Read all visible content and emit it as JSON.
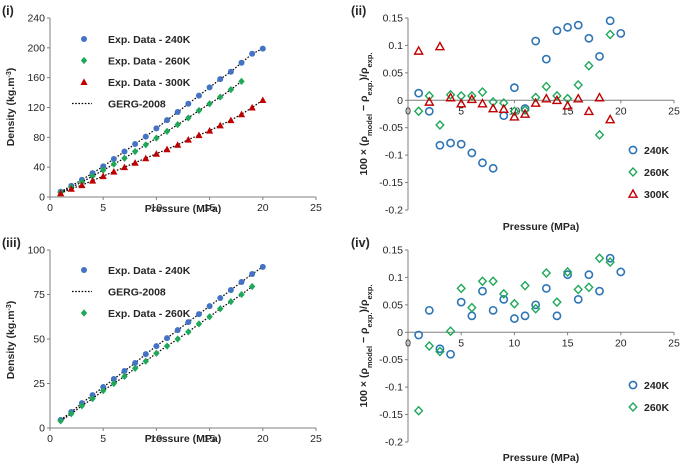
{
  "chart_data": [
    {
      "id": "i",
      "type": "scatter",
      "panel_label": "(i)",
      "xlabel": "Pressure (MPa)",
      "ylabel": "Density (kg.m⁻³)",
      "xlim": [
        0,
        25
      ],
      "ylim": [
        0,
        240
      ],
      "xticks": [
        0,
        5,
        10,
        15,
        20,
        25
      ],
      "yticks": [
        0,
        40,
        80,
        120,
        160,
        200,
        240
      ],
      "legend_position": "top-left",
      "series": [
        {
          "name": "Exp. Data - 240K",
          "marker": "circle",
          "color": "#4472c4",
          "x": [
            1,
            2,
            3,
            4,
            5,
            6,
            7,
            8,
            9,
            10,
            11,
            12,
            13,
            14,
            15,
            16,
            17,
            18,
            19,
            20
          ],
          "y": [
            7,
            15,
            23,
            32,
            41,
            51,
            61,
            71,
            81,
            92,
            103,
            114,
            125,
            136,
            147,
            158,
            168,
            180,
            192,
            199
          ]
        },
        {
          "name": "Exp. Data - 260K",
          "marker": "diamond",
          "color": "#1fa85a",
          "x": [
            1,
            2,
            3,
            4,
            5,
            6,
            7,
            8,
            9,
            10,
            11,
            12,
            13,
            14,
            15,
            16,
            17,
            18
          ],
          "y": [
            6,
            13,
            20,
            28,
            36,
            44,
            52,
            61,
            70,
            79,
            88,
            97,
            106,
            116,
            125,
            134,
            144,
            155
          ]
        },
        {
          "name": "Exp. Data - 300K",
          "marker": "triangle",
          "color": "#c00000",
          "x": [
            1,
            2,
            3,
            4,
            5,
            6,
            7,
            8,
            9,
            10,
            11,
            12,
            13,
            14,
            15,
            16,
            17,
            18,
            19,
            20
          ],
          "y": [
            5,
            11,
            16,
            22,
            28,
            34,
            40,
            46,
            52,
            58,
            64,
            70,
            77,
            83,
            89,
            96,
            103,
            111,
            120,
            130
          ]
        },
        {
          "name": "GERG-2008",
          "marker": "line",
          "color": "#000000"
        }
      ]
    },
    {
      "id": "ii",
      "type": "scatter",
      "panel_label": "(ii)",
      "xlabel": "Pressure (MPa)",
      "ylabel": "100 × (ρmodel − ρexp.)/ρexp.",
      "xlim": [
        0,
        25
      ],
      "ylim": [
        -0.2,
        0.15
      ],
      "xticks": [
        0,
        5,
        10,
        15,
        20,
        25
      ],
      "yticks": [
        -0.2,
        -0.15,
        -0.1,
        -0.05,
        0,
        0.05,
        0.1,
        0.15
      ],
      "ytick_labels": [
        "-0.2",
        "-0.15",
        "-0.1",
        "-0.05",
        "0",
        "0.05",
        "0.1",
        "0.15"
      ],
      "legend_position": "bottom-right",
      "series": [
        {
          "name": "240K",
          "marker": "circle-open",
          "color": "#2e75b6",
          "x": [
            1,
            2,
            3,
            4,
            5,
            6,
            7,
            8,
            9,
            10,
            11,
            12,
            13,
            14,
            15,
            16,
            17,
            18,
            19,
            20
          ],
          "y": [
            0.013,
            -0.02,
            -0.082,
            -0.078,
            -0.08,
            -0.096,
            -0.114,
            -0.124,
            -0.028,
            0.023,
            -0.015,
            0.108,
            0.075,
            0.127,
            0.133,
            0.137,
            0.113,
            0.08,
            0.145,
            0.122
          ]
        },
        {
          "name": "260K",
          "marker": "diamond-open",
          "color": "#1fa85a",
          "x": [
            1,
            2,
            3,
            4,
            5,
            6,
            7,
            8,
            9,
            10,
            11,
            12,
            13,
            14,
            15,
            16,
            17,
            18,
            19
          ],
          "y": [
            -0.02,
            0.008,
            -0.045,
            0.01,
            0.008,
            0.008,
            0.015,
            -0.003,
            -0.005,
            -0.02,
            -0.018,
            0.005,
            0.025,
            0.008,
            0.003,
            0.028,
            0.063,
            -0.063,
            0.12
          ]
        },
        {
          "name": "300K",
          "marker": "triangle-open",
          "color": "#c00000",
          "x": [
            1,
            2,
            3,
            4,
            5,
            6,
            7,
            8,
            9,
            10,
            11,
            12,
            13,
            14,
            15,
            16,
            17,
            18,
            19
          ],
          "y": [
            0.09,
            -0.003,
            0.098,
            0.005,
            -0.006,
            0.002,
            -0.006,
            -0.015,
            -0.016,
            -0.03,
            -0.025,
            -0.005,
            0.003,
            0.0,
            -0.01,
            0.003,
            -0.02,
            0.005,
            -0.035
          ]
        }
      ]
    },
    {
      "id": "iii",
      "type": "scatter",
      "panel_label": "(iii)",
      "xlabel": "Pressure (MPa)",
      "ylabel": "Density (kg.m⁻³)",
      "xlim": [
        0,
        25
      ],
      "ylim": [
        0,
        100
      ],
      "xticks": [
        0,
        5,
        10,
        15,
        20,
        25
      ],
      "yticks": [
        0,
        25,
        50,
        75,
        100
      ],
      "legend_position": "top-left",
      "series": [
        {
          "name": "Exp. Data - 240K",
          "marker": "circle",
          "color": "#4472c4",
          "x": [
            1,
            2,
            3,
            4,
            5,
            6,
            7,
            8,
            9,
            10,
            11,
            12,
            13,
            14,
            15,
            16,
            17,
            18,
            19,
            20
          ],
          "y": [
            4.5,
            9,
            14,
            18.5,
            23,
            27.5,
            32,
            36.5,
            41.5,
            46,
            50.5,
            55,
            59.5,
            64,
            68.5,
            73,
            77.5,
            82,
            86.5,
            90.5
          ]
        },
        {
          "name": "GERG-2008",
          "marker": "line",
          "color": "#000000"
        },
        {
          "name": "Exp. Data - 260K",
          "marker": "diamond",
          "color": "#1fa85a",
          "x": [
            1,
            2,
            3,
            4,
            5,
            6,
            7,
            8,
            9,
            10,
            11,
            12,
            13,
            14,
            15,
            16,
            17,
            18,
            19
          ],
          "y": [
            4,
            8,
            12.5,
            16.5,
            21,
            25,
            29,
            33.5,
            37.5,
            42,
            46,
            50,
            54,
            58.5,
            62.5,
            67,
            71,
            75,
            79.5
          ]
        }
      ]
    },
    {
      "id": "iv",
      "type": "scatter",
      "panel_label": "(iv)",
      "xlabel": "Pressure (MPa)",
      "ylabel": "100 × (ρmodel − ρexp.)/ρexp.",
      "xlim": [
        0,
        25
      ],
      "ylim": [
        -0.2,
        0.15
      ],
      "xticks": [
        0,
        5,
        10,
        15,
        20,
        25
      ],
      "yticks": [
        -0.2,
        -0.15,
        -0.1,
        -0.05,
        0,
        0.05,
        0.1,
        0.15
      ],
      "ytick_labels": [
        "-0.2",
        "-0.15",
        "-0.1",
        "-0.05",
        "0",
        "0.05",
        "0.1",
        "0.15"
      ],
      "legend_position": "bottom-right",
      "series": [
        {
          "name": "240K",
          "marker": "circle-open",
          "color": "#2e75b6",
          "x": [
            1,
            2,
            3,
            4,
            5,
            6,
            7,
            8,
            9,
            10,
            11,
            12,
            13,
            14,
            15,
            16,
            17,
            18,
            19,
            20
          ],
          "y": [
            -0.005,
            0.04,
            -0.03,
            -0.04,
            0.055,
            0.03,
            0.075,
            0.04,
            0.06,
            0.025,
            0.03,
            0.05,
            0.08,
            0.03,
            0.105,
            0.06,
            0.105,
            0.075,
            0.135,
            0.11
          ]
        },
        {
          "name": "260K",
          "marker": "diamond-open",
          "color": "#1fa85a",
          "x": [
            1,
            2,
            3,
            4,
            5,
            6,
            7,
            8,
            9,
            10,
            11,
            12,
            13,
            14,
            15,
            16,
            17,
            18,
            19
          ],
          "y": [
            -0.143,
            -0.025,
            -0.035,
            0.002,
            0.08,
            0.045,
            0.093,
            0.093,
            0.07,
            0.052,
            0.085,
            0.043,
            0.108,
            0.055,
            0.11,
            0.078,
            0.082,
            0.135,
            0.128
          ]
        }
      ]
    }
  ]
}
